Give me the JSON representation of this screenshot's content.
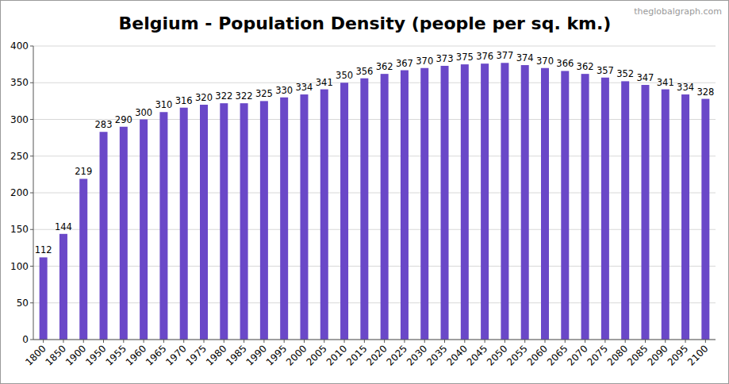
{
  "chart_data": {
    "type": "bar",
    "title": "Belgium - Population Density (people per sq. km.)",
    "annotations": [
      "theglobalgraph.com"
    ],
    "categories": [
      "1800",
      "1850",
      "1900",
      "1950",
      "1955",
      "1960",
      "1965",
      "1970",
      "1975",
      "1980",
      "1985",
      "1990",
      "1995",
      "2000",
      "2005",
      "2010",
      "2015",
      "2020",
      "2025",
      "2030",
      "2035",
      "2040",
      "2045",
      "2050",
      "2055",
      "2060",
      "2065",
      "2070",
      "2075",
      "2080",
      "2085",
      "2090",
      "2095",
      "2100"
    ],
    "values": [
      112,
      144,
      219,
      283,
      290,
      300,
      310,
      316,
      320,
      322,
      322,
      325,
      330,
      334,
      341,
      350,
      356,
      362,
      367,
      370,
      373,
      375,
      376,
      377,
      374,
      370,
      366,
      362,
      357,
      352,
      347,
      341,
      334,
      328
    ],
    "color": "#6a48c8",
    "ylim": [
      0,
      400
    ],
    "yticks": [
      0,
      50,
      100,
      150,
      200,
      250,
      300,
      350,
      400
    ],
    "grid": true,
    "data_labels": true
  }
}
